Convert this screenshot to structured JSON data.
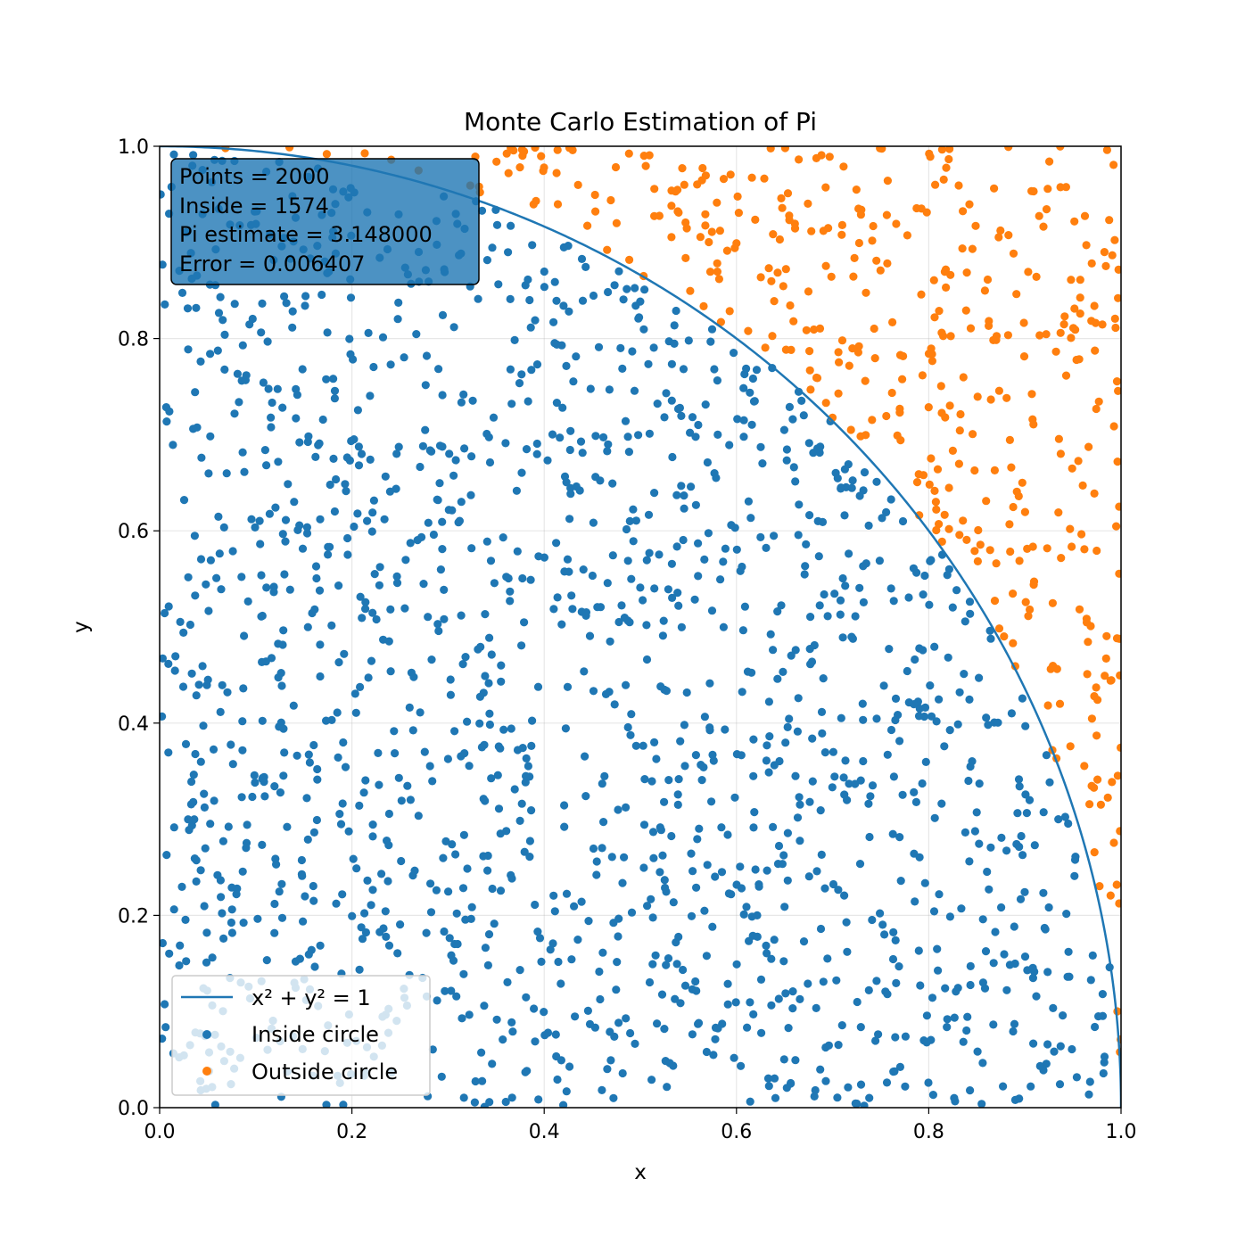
{
  "chart_data": {
    "type": "scatter",
    "title": "Monte Carlo Estimation of Pi",
    "xlabel": "x",
    "ylabel": "y",
    "xlim": [
      0,
      1
    ],
    "ylim": [
      0,
      1
    ],
    "grid": true,
    "aspect": "equal",
    "x_ticks": [
      "0.0",
      "0.2",
      "0.4",
      "0.6",
      "0.8",
      "1.0"
    ],
    "y_ticks": [
      "0.0",
      "0.2",
      "0.4",
      "0.6",
      "0.8",
      "1.0"
    ],
    "legend": {
      "placement": "lower left",
      "entries": [
        "x² + y² = 1",
        "Inside circle",
        "Outside circle"
      ]
    },
    "info_box": {
      "placement": "top-left",
      "lines": [
        "Points = 2000",
        "Inside = 1574",
        "Pi estimate = 3.148000",
        "Error = 0.006407"
      ]
    },
    "sampling": {
      "total_points": 2000,
      "inside_points": 1574,
      "outside_points": 426,
      "distribution": "uniform on [0,1] x [0,1]"
    },
    "series": [
      {
        "name": "x² + y² = 1",
        "kind": "line",
        "function": "y = sqrt(1 - x^2)",
        "color": "#1f77b4"
      },
      {
        "name": "Inside circle",
        "kind": "scatter",
        "count": 1574,
        "color": "#1f77b4"
      },
      {
        "name": "Outside circle",
        "kind": "scatter",
        "count": 426,
        "color": "#ff7f0e"
      }
    ]
  }
}
